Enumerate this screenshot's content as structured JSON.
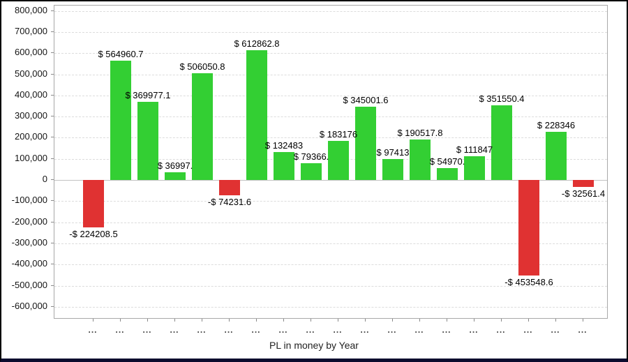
{
  "chart_data": {
    "type": "bar",
    "title": "PL in money by Year",
    "legend": "none",
    "grid": "horizontal-dashed",
    "xlabel": "PL in money by Year",
    "ylabel": "",
    "ylim": [
      -660000,
      825000
    ],
    "ytick_step": 100000,
    "ytick_labels": [
      "800,000",
      "700,000",
      "600,000",
      "500,000",
      "400,000",
      "300,000",
      "200,000",
      "100,000",
      "0",
      "-100,000",
      "-200,000",
      "-300,000",
      "-400,000",
      "-500,000",
      "-600,000"
    ],
    "ytick_values": [
      800000,
      700000,
      600000,
      500000,
      400000,
      300000,
      200000,
      100000,
      0,
      -100000,
      -200000,
      -300000,
      -400000,
      -500000,
      -600000
    ],
    "categories": [
      "...",
      "...",
      "...",
      "...",
      "...",
      "...",
      "...",
      "...",
      "...",
      "...",
      "...",
      "...",
      "...",
      "...",
      "...",
      "...",
      "...",
      "...",
      "..."
    ],
    "values": [
      -224208.5,
      564960.7,
      369977.1,
      36997,
      506050.8,
      -74231.6,
      612862.8,
      132483,
      79366,
      183176,
      345001.6,
      97413,
      190517.8,
      54970,
      111847,
      351550.4,
      -453548.6,
      228346,
      -32561.4
    ],
    "bar_labels": [
      "-$ 224208.5",
      "$ 564960.7",
      "$ 369977.1",
      "$ 36997.",
      "$ 506050.8",
      "-$ 74231.6",
      "$ 612862.8",
      "$ 132483",
      "$ 79366.",
      "$ 183176",
      "$ 345001.6",
      "$ 97413",
      "$ 190517.8",
      "$ 54970.",
      "$ 111847",
      "$ 351550.4",
      "-$ 453548.6",
      "$ 228346",
      "-$ 32561.4"
    ],
    "colors": {
      "positive_bar": "#33cf33",
      "negative_bar": "#e03232",
      "gridline": "#dcdcdc",
      "zero_line": "#c2c2c2",
      "plot_border": "#a8a8a8",
      "axis_text": "#141414",
      "bar_label_text": "#000000",
      "frame_border": "#000000",
      "frame_bottom_band": "#0b0b2e",
      "background": "#ffffff"
    }
  }
}
